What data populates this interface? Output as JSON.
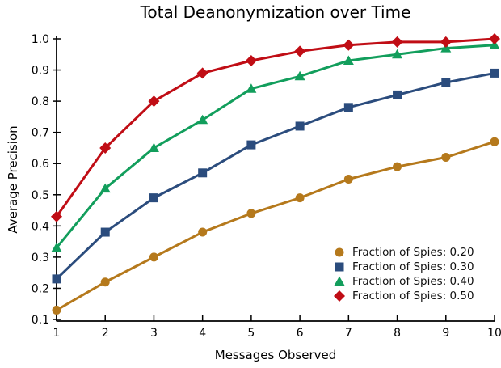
{
  "chart_data": {
    "type": "line",
    "title": "Total Deanonymization over Time",
    "xlabel": "Messages Observed",
    "ylabel": "Average Precision",
    "x": [
      1,
      2,
      3,
      4,
      5,
      6,
      7,
      8,
      9,
      10
    ],
    "xlim": [
      1,
      10
    ],
    "ylim": [
      0.1,
      1.0
    ],
    "xticks": [
      1,
      2,
      3,
      4,
      5,
      6,
      7,
      8,
      9,
      10
    ],
    "yticks": [
      0.1,
      0.2,
      0.3,
      0.4,
      0.5,
      0.6,
      0.7,
      0.8,
      0.9,
      1.0
    ],
    "grid": false,
    "legend_position": "lower-right-inside",
    "axis_color": "#000000",
    "series": [
      {
        "name": "Fraction of Spies: 0.20",
        "marker": "circle",
        "color": "#B5791C",
        "values": [
          0.13,
          0.22,
          0.3,
          0.38,
          0.44,
          0.49,
          0.55,
          0.59,
          0.62,
          0.67
        ]
      },
      {
        "name": "Fraction of Spies: 0.30",
        "marker": "square",
        "color": "#2B4C7D",
        "values": [
          0.23,
          0.38,
          0.49,
          0.57,
          0.66,
          0.72,
          0.78,
          0.82,
          0.86,
          0.89
        ]
      },
      {
        "name": "Fraction of Spies: 0.40",
        "marker": "triangle",
        "color": "#129E5C",
        "values": [
          0.33,
          0.52,
          0.65,
          0.74,
          0.84,
          0.88,
          0.93,
          0.95,
          0.97,
          0.98
        ]
      },
      {
        "name": "Fraction of Spies: 0.50",
        "marker": "diamond",
        "color": "#C00D15",
        "values": [
          0.43,
          0.65,
          0.8,
          0.89,
          0.93,
          0.96,
          0.98,
          0.99,
          0.99,
          1.0
        ]
      }
    ]
  }
}
